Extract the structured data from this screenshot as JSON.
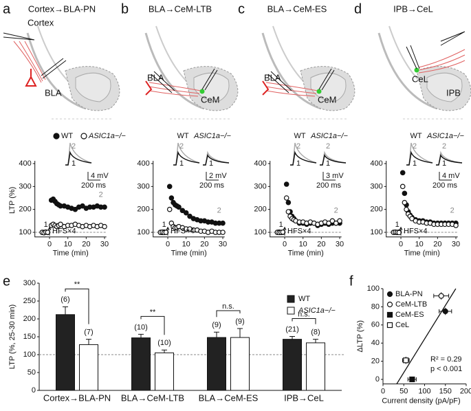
{
  "panels": [
    {
      "letter": "a",
      "title": "Cortex→BLA-PN",
      "labels": [
        "Cortex",
        "BLA"
      ]
    },
    {
      "letter": "b",
      "title": "BLA→CeM-LTB",
      "labels": [
        "BLA",
        "CeM"
      ]
    },
    {
      "letter": "c",
      "title": "BLA→CeM-ES",
      "labels": [
        "BLA",
        "CeM"
      ]
    },
    {
      "letter": "d",
      "title": "IPB→CeL",
      "labels": [
        "CeL",
        "IPB"
      ]
    },
    {
      "letter": "e"
    },
    {
      "letter": "f"
    }
  ],
  "chart_data": [
    {
      "type": "scatter",
      "legend": "top",
      "ylabel": "LTP (%)",
      "xlabel": "Time (min)",
      "x": [
        -4,
        -3,
        -2,
        -1,
        1,
        2,
        3,
        4,
        5,
        6,
        8,
        10,
        12,
        14,
        16,
        18,
        20,
        22,
        24,
        26,
        28,
        30
      ],
      "series": [
        {
          "name": "WT",
          "color": "#111111",
          "filled": true,
          "marker": "circle",
          "values": [
            100,
            100,
            101,
            99,
            240,
            245,
            235,
            225,
            220,
            215,
            215,
            210,
            205,
            200,
            210,
            215,
            205,
            210,
            210,
            215,
            210,
            210
          ]
        },
        {
          "name": "ASIC1a−/−",
          "color": "#111111",
          "filled": false,
          "marker": "circle",
          "values": [
            100,
            98,
            101,
            100,
            130,
            135,
            130,
            125,
            130,
            135,
            125,
            130,
            130,
            135,
            130,
            125,
            130,
            125,
            130,
            125,
            130,
            125
          ]
        }
      ],
      "xlim": [
        -8,
        31
      ],
      "xticks": [
        0,
        10,
        20,
        30
      ],
      "ylim": [
        80,
        400
      ],
      "yticks": [
        100,
        200,
        300,
        400
      ],
      "reference_line": 100,
      "stimulus": "HFS×4",
      "in_plot_labels": [
        "1",
        "2"
      ],
      "trace_labels": [
        "1",
        "2"
      ],
      "scale_bar": [
        "4 mV",
        "200 ms"
      ]
    },
    {
      "type": "scatter",
      "legend": "traces",
      "xlabel": "Time (min)",
      "x": [
        -4,
        -3,
        -2,
        -1,
        1,
        2,
        3,
        4,
        5,
        6,
        8,
        10,
        12,
        14,
        16,
        18,
        20,
        22,
        24,
        26,
        28,
        30
      ],
      "series": [
        {
          "name": "WT",
          "color": "#111111",
          "filled": true,
          "marker": "circle",
          "values": [
            100,
            99,
            101,
            100,
            300,
            250,
            230,
            220,
            215,
            210,
            195,
            185,
            170,
            160,
            155,
            150,
            150,
            145,
            145,
            140,
            140,
            140
          ]
        },
        {
          "name": "ASIC1a−/−",
          "color": "#111111",
          "filled": false,
          "marker": "circle",
          "values": [
            100,
            101,
            99,
            100,
            200,
            140,
            125,
            120,
            120,
            125,
            120,
            115,
            115,
            110,
            110,
            105,
            105,
            100,
            105,
            100,
            100,
            100
          ]
        }
      ],
      "xlim": [
        -8,
        31
      ],
      "xticks": [
        0,
        10,
        20,
        30
      ],
      "ylim": [
        80,
        400
      ],
      "yticks": [
        100,
        200,
        300,
        400
      ],
      "reference_line": 100,
      "stimulus": "HFS×4",
      "in_plot_labels": [
        "1",
        "2"
      ],
      "trace_labels": [
        "1",
        "2",
        "1"
      ],
      "scale_bar": [
        "2 mV",
        "200 ms"
      ]
    },
    {
      "type": "scatter",
      "legend": "traces",
      "xlabel": "Time (min)",
      "x": [
        -4,
        -3,
        -2,
        -1,
        1,
        2,
        3,
        4,
        5,
        6,
        8,
        10,
        12,
        14,
        16,
        18,
        20,
        22,
        24,
        26,
        28,
        30
      ],
      "series": [
        {
          "name": "WT",
          "color": "#111111",
          "filled": true,
          "marker": "circle",
          "values": [
            100,
            101,
            99,
            100,
            310,
            230,
            190,
            170,
            160,
            150,
            140,
            140,
            135,
            140,
            140,
            130,
            135,
            140,
            135,
            140,
            140,
            140
          ]
        },
        {
          "name": "ASIC1a−/−",
          "color": "#111111",
          "filled": false,
          "marker": "circle",
          "values": [
            100,
            99,
            100,
            101,
            250,
            190,
            170,
            160,
            155,
            150,
            145,
            145,
            140,
            145,
            140,
            135,
            140,
            145,
            140,
            150,
            140,
            150
          ]
        }
      ],
      "xlim": [
        -8,
        31
      ],
      "xticks": [
        0,
        10,
        20,
        30
      ],
      "ylim": [
        80,
        400
      ],
      "yticks": [
        100,
        200,
        300,
        400
      ],
      "reference_line": 100,
      "stimulus": "HFS×4",
      "in_plot_labels": [
        "1",
        "2"
      ],
      "trace_labels": [
        "2",
        "1",
        "2",
        "1"
      ],
      "scale_bar": [
        "3 mV",
        "200 ms"
      ]
    },
    {
      "type": "scatter",
      "legend": "traces",
      "xlabel": "Time (min)",
      "x": [
        -4,
        -3,
        -2,
        -1,
        1,
        2,
        3,
        4,
        5,
        6,
        8,
        10,
        12,
        14,
        16,
        18,
        20,
        22,
        24,
        26,
        28,
        30
      ],
      "series": [
        {
          "name": "WT",
          "color": "#111111",
          "filled": true,
          "marker": "circle",
          "values": [
            100,
            100,
            99,
            101,
            360,
            270,
            220,
            190,
            175,
            165,
            155,
            150,
            150,
            145,
            145,
            140,
            140,
            140,
            140,
            140,
            140,
            140
          ]
        },
        {
          "name": "ASIC1a−/−",
          "color": "#111111",
          "filled": false,
          "marker": "circle",
          "values": [
            100,
            101,
            100,
            99,
            300,
            230,
            200,
            180,
            170,
            160,
            150,
            145,
            145,
            140,
            140,
            135,
            135,
            135,
            135,
            135,
            135,
            130
          ]
        }
      ],
      "xlim": [
        -8,
        31
      ],
      "xticks": [
        0,
        10,
        20,
        30
      ],
      "ylim": [
        80,
        400
      ],
      "yticks": [
        100,
        200,
        300,
        400
      ],
      "reference_line": 100,
      "stimulus": "HFS×4",
      "in_plot_labels": [
        "1",
        "2"
      ],
      "trace_labels": [
        "2",
        "1",
        "2",
        "1"
      ],
      "scale_bar": [
        "4 mV",
        "200 ms"
      ]
    },
    {
      "type": "bar",
      "ylabel": "LTP (%, 25-30 min)",
      "categories": [
        "Cortex→BLA-PN",
        "BLA→CeM-LTB",
        "BLA→CeM-ES",
        "IPB→CeL"
      ],
      "series": [
        {
          "name": "WT",
          "color": "#222222",
          "filled": true,
          "values": [
            212,
            147,
            148,
            143
          ],
          "errors": [
            22,
            10,
            15,
            8
          ],
          "n_labels": [
            "(6)",
            "(10)",
            "(9)",
            "(21)"
          ]
        },
        {
          "name": "ASIC1a−/−",
          "color": "#222222",
          "filled": false,
          "values": [
            128,
            105,
            148,
            133
          ],
          "errors": [
            15,
            8,
            25,
            10
          ],
          "n_labels": [
            "(7)",
            "(10)",
            "(9)",
            "(8)"
          ]
        }
      ],
      "significance": [
        "**",
        "**",
        "n.s.",
        "n.s."
      ],
      "ylim": [
        0,
        300
      ],
      "yticks": [
        0,
        50,
        100,
        150,
        200,
        250,
        300
      ],
      "reference_line": 100
    },
    {
      "type": "scatter",
      "legend": "top-left",
      "xlabel": "Current density (pA/pF)",
      "ylabel": "ΔLTP (%)",
      "series": [
        {
          "name": "BLA-PN",
          "color": "#111111",
          "filled": true,
          "marker": "circle",
          "x": [
            150
          ],
          "values": [
            75
          ],
          "xerr": [
            15
          ],
          "yerr": [
            4
          ]
        },
        {
          "name": "CeM-LTB",
          "color": "#111111",
          "filled": false,
          "marker": "circle",
          "x": [
            140
          ],
          "values": [
            92
          ],
          "xerr": [
            18
          ],
          "yerr": [
            4
          ]
        },
        {
          "name": "CeM-ES",
          "color": "#111111",
          "filled": true,
          "marker": "square",
          "x": [
            70
          ],
          "values": [
            0
          ],
          "xerr": [
            10
          ],
          "yerr": [
            3
          ]
        },
        {
          "name": "CeL",
          "color": "#111111",
          "filled": false,
          "marker": "square",
          "x": [
            55
          ],
          "values": [
            21
          ],
          "xerr": [
            8
          ],
          "yerr": [
            4
          ]
        }
      ],
      "fit_line": {
        "x": [
          33,
          175
        ],
        "y": [
          -5,
          100
        ]
      },
      "annotations": [
        "R² = 0.29",
        "p < 0.001"
      ],
      "xlim": [
        0,
        200
      ],
      "xticks": [
        0,
        50,
        100,
        150,
        200
      ],
      "ylim": [
        -5,
        100
      ],
      "yticks": [
        0,
        20,
        40,
        60,
        80,
        100
      ]
    }
  ]
}
